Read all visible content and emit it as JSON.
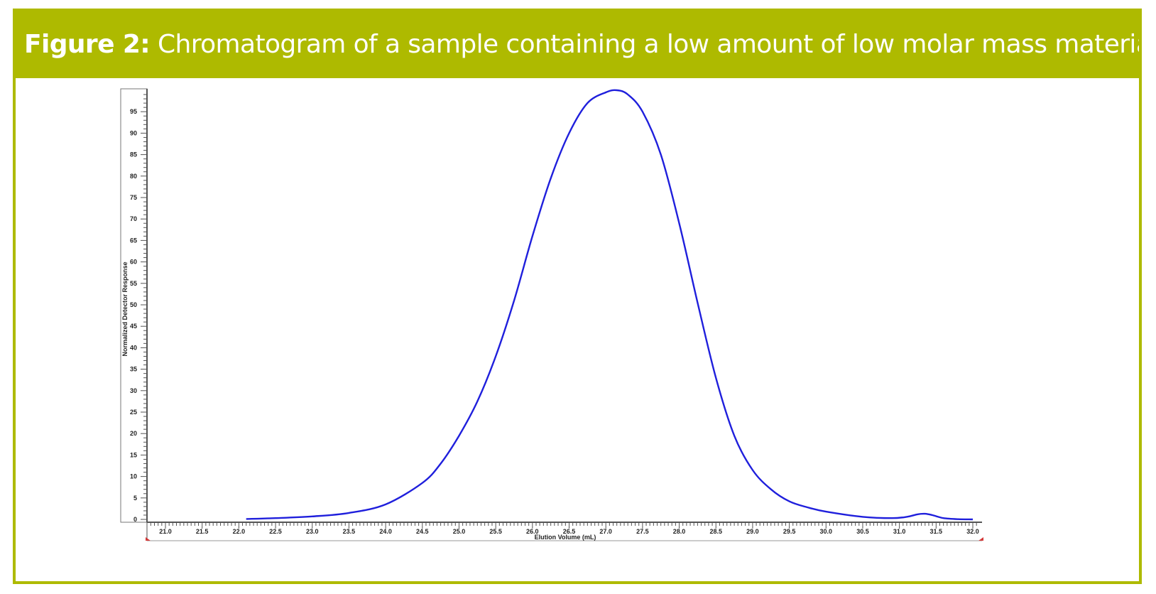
{
  "figure": {
    "label": "Figure 2:",
    "caption": "Chromatogram of a sample containing a low amount of low molar mass material."
  },
  "colors": {
    "accent": "#aeba00",
    "series": "#1f1fdc"
  },
  "chart_data": {
    "type": "line",
    "title": "",
    "xlabel": "Elution Volume (mL)",
    "ylabel": "Normalized Detector Response",
    "xlim": [
      20.75,
      32.1
    ],
    "ylim": [
      0,
      100
    ],
    "x_ticks": [
      "21.0",
      "21.5",
      "22.0",
      "22.5",
      "23.0",
      "23.5",
      "24.0",
      "24.5",
      "25.0",
      "25.5",
      "26.0",
      "26.5",
      "27.0",
      "27.5",
      "28.0",
      "28.5",
      "29.0",
      "29.5",
      "30.0",
      "30.5",
      "31.0",
      "31.5",
      "32.0"
    ],
    "y_ticks": [
      "0",
      "5",
      "10",
      "15",
      "20",
      "25",
      "30",
      "35",
      "40",
      "45",
      "50",
      "55",
      "60",
      "65",
      "70",
      "75",
      "80",
      "85",
      "90",
      "95"
    ],
    "grid": false,
    "legend": "none",
    "series": [
      {
        "x": [
          22.1,
          22.5,
          23.0,
          23.5,
          24.0,
          24.5,
          24.75,
          25.0,
          25.25,
          25.5,
          25.75,
          26.0,
          26.25,
          26.5,
          26.75,
          27.0,
          27.15,
          27.3,
          27.5,
          27.75,
          28.0,
          28.25,
          28.5,
          28.75,
          29.0,
          29.25,
          29.5,
          29.75,
          30.0,
          30.5,
          30.9,
          31.1,
          31.25,
          31.35,
          31.45,
          31.6,
          31.8,
          32.0
        ],
        "y": [
          0.1,
          0.3,
          0.7,
          1.5,
          3.5,
          8.5,
          13.0,
          19.5,
          27.5,
          38.0,
          51.0,
          66.0,
          79.5,
          90.0,
          97.0,
          99.5,
          100.0,
          99.0,
          95.0,
          85.0,
          69.0,
          50.5,
          33.0,
          19.5,
          11.5,
          7.0,
          4.2,
          2.8,
          1.8,
          0.6,
          0.3,
          0.6,
          1.2,
          1.3,
          1.0,
          0.3,
          0.05,
          0.0
        ]
      }
    ]
  }
}
